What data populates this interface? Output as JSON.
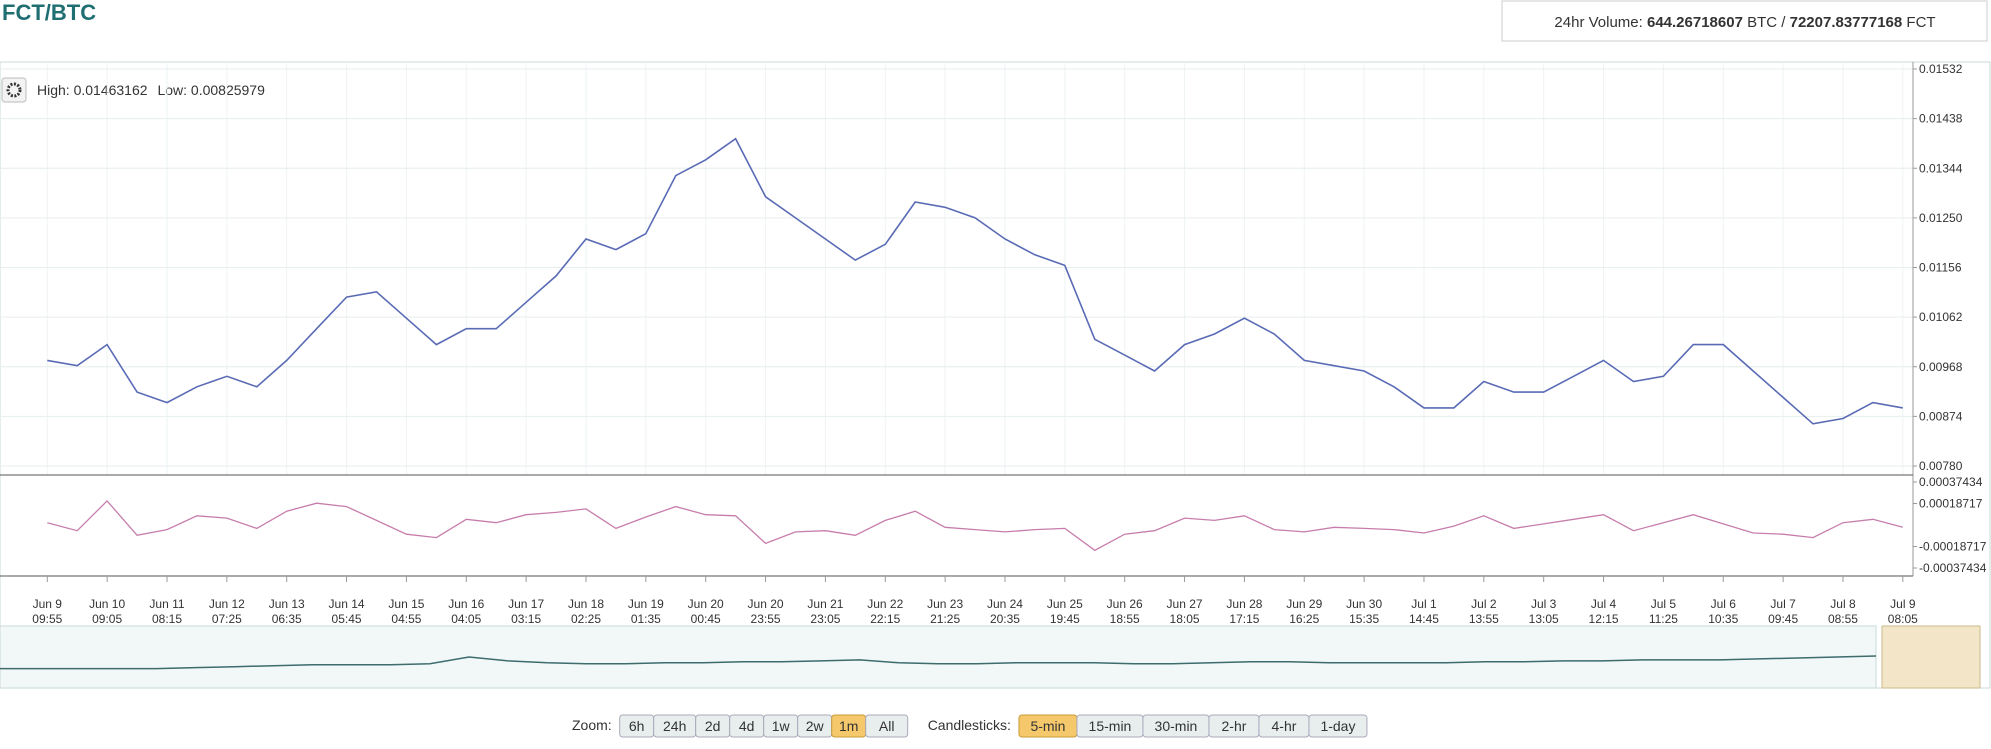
{
  "header": {
    "pair": "FCT/BTC",
    "volume_label": "24hr Volume:",
    "volume_btc": "644.26718607",
    "btc": "BTC",
    "separator": "/",
    "volume_fct": "72207.83777168",
    "fct": "FCT"
  },
  "chart_data": [
    {
      "type": "line",
      "high_label": "High:",
      "high": 0.01463162,
      "low_label": "Low:",
      "low": 0.00825979,
      "x": [
        0,
        0.5,
        1,
        1.5,
        2,
        2.5,
        3,
        3.5,
        4,
        4.5,
        5,
        5.5,
        6,
        6.5,
        7,
        7.5,
        8,
        8.5,
        9,
        9.5,
        10,
        10.5,
        11,
        11.5,
        12,
        12.5,
        13,
        13.5,
        14,
        14.5,
        15,
        15.5,
        16,
        16.5,
        17,
        17.5,
        18,
        18.5,
        19,
        19.5,
        20,
        20.5,
        21,
        21.5,
        22,
        22.5,
        23,
        23.5,
        24,
        24.5,
        25,
        25.5,
        26,
        26.5,
        27,
        27.5,
        28,
        28.5,
        29,
        29.5,
        30,
        30.5,
        31
      ],
      "series": [
        {
          "color": "#5a6bb5",
          "values": [
            0.0098,
            0.0097,
            0.0101,
            0.0092,
            0.009,
            0.0093,
            0.0095,
            0.0093,
            0.0098,
            0.0104,
            0.011,
            0.0111,
            0.0106,
            0.0101,
            0.0104,
            0.0104,
            0.0109,
            0.0114,
            0.0121,
            0.0119,
            0.0122,
            0.0133,
            0.0136,
            0.014,
            0.0129,
            0.0125,
            0.0121,
            0.0117,
            0.012,
            0.0128,
            0.0127,
            0.0125,
            0.0121,
            0.0118,
            0.0116,
            0.0102,
            0.0099,
            0.0096,
            0.0101,
            0.0103,
            0.0106,
            0.0103,
            0.0098,
            0.0097,
            0.0096,
            0.0093,
            0.0089,
            0.0089,
            0.0094,
            0.0092,
            0.0092,
            0.0095,
            0.0098,
            0.0094,
            0.0095,
            0.0101,
            0.0101,
            0.0096,
            0.0091,
            0.0086,
            0.0087,
            0.009,
            0.0089
          ]
        }
      ],
      "xlim": [
        -0.79,
        31.17
      ],
      "xticks": [
        {
          "value": 0,
          "label": "Jun 9"
        },
        {
          "value": 1,
          "label": "Jun 10"
        },
        {
          "value": 2,
          "label": "Jun 11"
        },
        {
          "value": 3,
          "label": "Jun 12"
        },
        {
          "value": 4,
          "label": "Jun 13"
        },
        {
          "value": 5,
          "label": "Jun 14"
        },
        {
          "value": 6,
          "label": "Jun 15"
        },
        {
          "value": 7,
          "label": "Jun 16"
        },
        {
          "value": 8,
          "label": "Jun 17"
        },
        {
          "value": 9,
          "label": "Jun 18"
        },
        {
          "value": 10,
          "label": "Jun 19"
        },
        {
          "value": 11,
          "label": "Jun 20"
        },
        {
          "value": 12,
          "label": "Jun 20"
        },
        {
          "value": 13,
          "label": "Jun 21"
        },
        {
          "value": 14,
          "label": "Jun 22"
        },
        {
          "value": 15,
          "label": "Jun 23"
        },
        {
          "value": 16,
          "label": "Jun 24"
        },
        {
          "value": 17,
          "label": "Jun 25"
        },
        {
          "value": 18,
          "label": "Jun 26"
        },
        {
          "value": 19,
          "label": "Jun 27"
        },
        {
          "value": 20,
          "label": "Jun 28"
        },
        {
          "value": 21,
          "label": "Jun 29"
        },
        {
          "value": 22,
          "label": "Jun 30"
        },
        {
          "value": 23,
          "label": "Jul 1"
        },
        {
          "value": 24,
          "label": "Jul 2"
        },
        {
          "value": 25,
          "label": "Jul 3"
        },
        {
          "value": 26,
          "label": "Jul 4"
        },
        {
          "value": 27,
          "label": "Jul 5"
        },
        {
          "value": 28,
          "label": "Jul 6"
        },
        {
          "value": 29,
          "label": "Jul 7"
        },
        {
          "value": 30,
          "label": "Jul 8"
        },
        {
          "value": 31,
          "label": "Jul 9"
        }
      ],
      "xtick_times": [
        "09:55",
        "09:05",
        "08:15",
        "07:25",
        "06:35",
        "05:45",
        "04:55",
        "04:05",
        "03:15",
        "02:25",
        "01:35",
        "00:45",
        "23:55",
        "23:05",
        "22:15",
        "21:25",
        "20:35",
        "19:45",
        "18:55",
        "18:05",
        "17:15",
        "16:25",
        "15:35",
        "14:45",
        "13:55",
        "13:05",
        "12:15",
        "11:25",
        "10:35",
        "09:45",
        "08:55",
        "08:05"
      ],
      "ylim": [
        0.0078,
        0.01532
      ],
      "yticks": [
        0.01532,
        0.01438,
        0.01344,
        {
          "value": 0.0125,
          "label": "0.01250"
        },
        0.01156,
        0.01062,
        0.00968,
        0.00874,
        {
          "value": 0.0078,
          "label": "0.00780"
        }
      ],
      "grid": true
    },
    {
      "type": "line",
      "series": [
        {
          "color": "#c77dac",
          "values": [
            2e-05,
            -5e-05,
            0.00021,
            -9e-05,
            -4e-05,
            8e-05,
            6e-05,
            -3e-05,
            0.00012,
            0.00019,
            0.00016,
            4e-05,
            -8e-05,
            -0.00011,
            5e-05,
            2e-05,
            9e-05,
            0.00011,
            0.00014,
            -3e-05,
            7e-05,
            0.00016,
            9e-05,
            8e-05,
            -0.00016,
            -6e-05,
            -5e-05,
            -9e-05,
            4e-05,
            0.00012,
            -2e-05,
            -4e-05,
            -6e-05,
            -4e-05,
            -3e-05,
            -0.00022,
            -8e-05,
            -5e-05,
            6e-05,
            4e-05,
            8e-05,
            -4e-05,
            -6e-05,
            -2e-05,
            -3e-05,
            -4e-05,
            -7e-05,
            -1e-05,
            8e-05,
            -3e-05,
            1e-05,
            5e-05,
            9e-05,
            -5e-05,
            2e-05,
            9e-05,
            1e-05,
            -7e-05,
            -8e-05,
            -0.00011,
            2e-05,
            5e-05,
            -2e-05
          ]
        }
      ],
      "ylim": [
        -0.00037434,
        0.00037434
      ],
      "yticks": [
        0.00037434,
        0.00018717,
        -0.00018717,
        -0.00037434
      ]
    },
    {
      "type": "area",
      "series": [
        {
          "color": "#3e6b6b",
          "values": [
            18,
            18,
            18,
            18,
            18,
            19,
            20,
            21,
            22,
            22,
            22,
            23,
            30,
            26,
            24,
            23,
            23,
            24,
            24,
            25,
            25,
            26,
            27,
            24,
            23,
            23,
            24,
            24,
            24,
            23,
            23,
            24,
            25,
            25,
            24,
            24,
            24,
            24,
            25,
            25,
            26,
            26,
            27,
            27,
            27,
            28,
            29,
            30,
            31
          ]
        }
      ],
      "ylim": [
        0,
        60
      ]
    }
  ],
  "controls": {
    "zoom_label": "Zoom:",
    "zoom": [
      "6h",
      "24h",
      "2d",
      "4d",
      "1w",
      "2w",
      "1m",
      "All"
    ],
    "zoom_selected": 6,
    "candles_label": "Candlesticks:",
    "candles": [
      "5-min",
      "15-min",
      "30-min",
      "2-hr",
      "4-hr",
      "1-day"
    ],
    "candles_selected": 0
  }
}
